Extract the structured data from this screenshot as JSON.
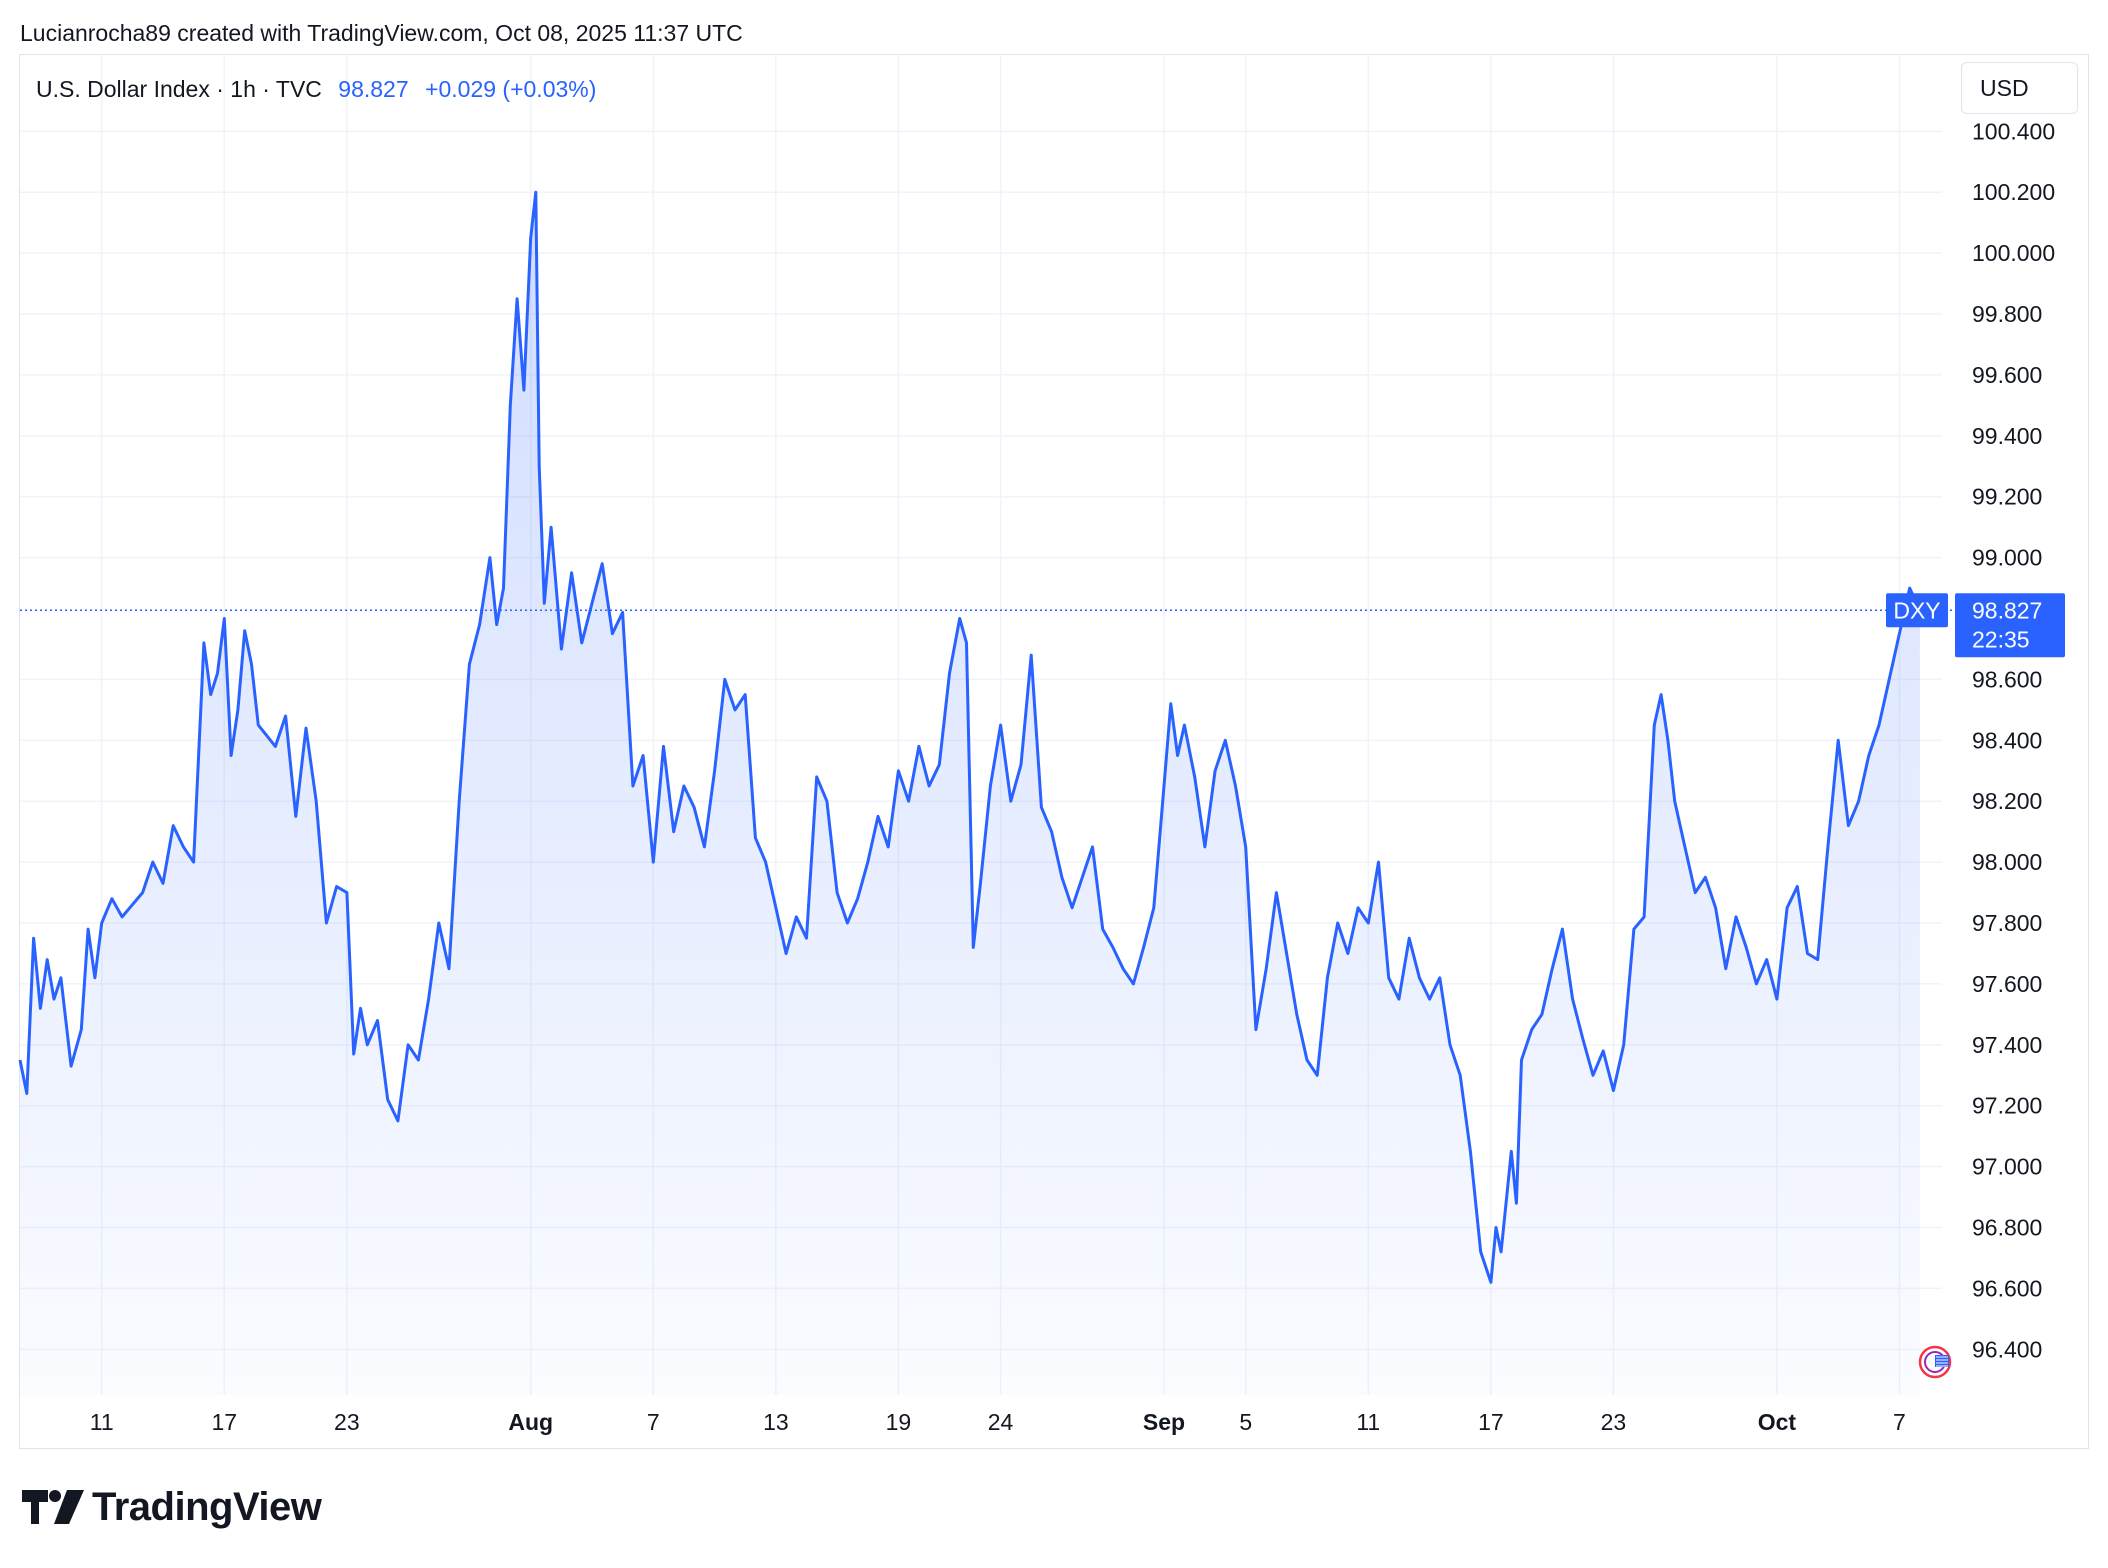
{
  "header": {
    "credit": "Lucianrocha89 created with TradingView.com, Oct 08, 2025 11:37 UTC"
  },
  "legend": {
    "symbol": "U.S. Dollar Index · 1h · TVC",
    "last": "98.827",
    "change": "+0.029 (+0.03%)"
  },
  "currency_button": "USD",
  "price_label": {
    "ticker": "DXY",
    "price": "98.827",
    "countdown": "22:35"
  },
  "footer": {
    "brand": "TradingView"
  },
  "icons": [
    "tradingview-logo-icon",
    "us-flag-icon"
  ],
  "colors": {
    "line": "#2962ff",
    "fill": "#2962ff",
    "grid": "#f0f3fa",
    "label_bg": "#2962ff"
  },
  "chart_data": {
    "type": "area",
    "symbol": "DXY",
    "interval": "1h",
    "y_axis_ticks": [
      "100.400",
      "100.200",
      "100.000",
      "99.800",
      "99.600",
      "99.400",
      "99.200",
      "99.000",
      "98.600",
      "98.400",
      "98.200",
      "98.000",
      "97.800",
      "97.600",
      "97.400",
      "97.200",
      "97.000",
      "96.800",
      "96.600",
      "96.400"
    ],
    "ylim": [
      96.25,
      100.47
    ],
    "x_axis_ticks": [
      {
        "label": "11",
        "date": "2025-07-11",
        "bold": false
      },
      {
        "label": "17",
        "date": "2025-07-17",
        "bold": false
      },
      {
        "label": "23",
        "date": "2025-07-23",
        "bold": false
      },
      {
        "label": "Aug",
        "date": "2025-08-01",
        "bold": true
      },
      {
        "label": "7",
        "date": "2025-08-07",
        "bold": false
      },
      {
        "label": "13",
        "date": "2025-08-13",
        "bold": false
      },
      {
        "label": "19",
        "date": "2025-08-19",
        "bold": false
      },
      {
        "label": "24",
        "date": "2025-08-24",
        "bold": false
      },
      {
        "label": "Sep",
        "date": "2025-09-01",
        "bold": true
      },
      {
        "label": "5",
        "date": "2025-09-05",
        "bold": false
      },
      {
        "label": "11",
        "date": "2025-09-11",
        "bold": false
      },
      {
        "label": "17",
        "date": "2025-09-17",
        "bold": false
      },
      {
        "label": "23",
        "date": "2025-09-23",
        "bold": false
      },
      {
        "label": "Oct",
        "date": "2025-10-01",
        "bold": true
      },
      {
        "label": "7",
        "date": "2025-10-07",
        "bold": false
      }
    ],
    "xlim": [
      "2025-07-07T00:00",
      "2025-10-09T02:00"
    ],
    "last_price": 98.827,
    "grid": true,
    "series": [
      {
        "points": [
          [
            "2025-07-07T00:00",
            97.35
          ],
          [
            "2025-07-07T08:00",
            97.24
          ],
          [
            "2025-07-07T16:00",
            97.75
          ],
          [
            "2025-07-08T00:00",
            97.52
          ],
          [
            "2025-07-08T08:00",
            97.68
          ],
          [
            "2025-07-08T16:00",
            97.55
          ],
          [
            "2025-07-09T00:00",
            97.62
          ],
          [
            "2025-07-09T12:00",
            97.33
          ],
          [
            "2025-07-10T00:00",
            97.45
          ],
          [
            "2025-07-10T08:00",
            97.78
          ],
          [
            "2025-07-10T16:00",
            97.62
          ],
          [
            "2025-07-11T00:00",
            97.8
          ],
          [
            "2025-07-11T12:00",
            97.88
          ],
          [
            "2025-07-12T00:00",
            97.82
          ],
          [
            "2025-07-13T00:00",
            97.9
          ],
          [
            "2025-07-13T12:00",
            98.0
          ],
          [
            "2025-07-14T00:00",
            97.93
          ],
          [
            "2025-07-14T12:00",
            98.12
          ],
          [
            "2025-07-15T00:00",
            98.05
          ],
          [
            "2025-07-15T12:00",
            98.0
          ],
          [
            "2025-07-16T00:00",
            98.72
          ],
          [
            "2025-07-16T08:00",
            98.55
          ],
          [
            "2025-07-16T16:00",
            98.62
          ],
          [
            "2025-07-17T00:00",
            98.8
          ],
          [
            "2025-07-17T08:00",
            98.35
          ],
          [
            "2025-07-17T16:00",
            98.5
          ],
          [
            "2025-07-18T00:00",
            98.76
          ],
          [
            "2025-07-18T08:00",
            98.65
          ],
          [
            "2025-07-18T16:00",
            98.45
          ],
          [
            "2025-07-19T12:00",
            98.38
          ],
          [
            "2025-07-20T00:00",
            98.48
          ],
          [
            "2025-07-20T12:00",
            98.15
          ],
          [
            "2025-07-21T00:00",
            98.44
          ],
          [
            "2025-07-21T12:00",
            98.2
          ],
          [
            "2025-07-22T00:00",
            97.8
          ],
          [
            "2025-07-22T12:00",
            97.92
          ],
          [
            "2025-07-23T00:00",
            97.9
          ],
          [
            "2025-07-23T08:00",
            97.37
          ],
          [
            "2025-07-23T16:00",
            97.52
          ],
          [
            "2025-07-24T00:00",
            97.4
          ],
          [
            "2025-07-24T12:00",
            97.48
          ],
          [
            "2025-07-25T00:00",
            97.22
          ],
          [
            "2025-07-25T12:00",
            97.15
          ],
          [
            "2025-07-26T00:00",
            97.4
          ],
          [
            "2025-07-26T12:00",
            97.35
          ],
          [
            "2025-07-27T00:00",
            97.55
          ],
          [
            "2025-07-27T12:00",
            97.8
          ],
          [
            "2025-07-28T00:00",
            97.65
          ],
          [
            "2025-07-28T12:00",
            98.2
          ],
          [
            "2025-07-29T00:00",
            98.65
          ],
          [
            "2025-07-29T12:00",
            98.78
          ],
          [
            "2025-07-30T00:00",
            99.0
          ],
          [
            "2025-07-30T08:00",
            98.78
          ],
          [
            "2025-07-30T16:00",
            98.9
          ],
          [
            "2025-07-31T00:00",
            99.5
          ],
          [
            "2025-07-31T08:00",
            99.85
          ],
          [
            "2025-07-31T16:00",
            99.55
          ],
          [
            "2025-08-01T00:00",
            100.05
          ],
          [
            "2025-08-01T06:00",
            100.2
          ],
          [
            "2025-08-01T10:00",
            99.3
          ],
          [
            "2025-08-01T16:00",
            98.85
          ],
          [
            "2025-08-02T00:00",
            99.1
          ],
          [
            "2025-08-02T12:00",
            98.7
          ],
          [
            "2025-08-03T00:00",
            98.95
          ],
          [
            "2025-08-03T12:00",
            98.72
          ],
          [
            "2025-08-04T00:00",
            98.85
          ],
          [
            "2025-08-04T12:00",
            98.98
          ],
          [
            "2025-08-05T00:00",
            98.75
          ],
          [
            "2025-08-05T12:00",
            98.82
          ],
          [
            "2025-08-06T00:00",
            98.25
          ],
          [
            "2025-08-06T12:00",
            98.35
          ],
          [
            "2025-08-07T00:00",
            98.0
          ],
          [
            "2025-08-07T12:00",
            98.38
          ],
          [
            "2025-08-08T00:00",
            98.1
          ],
          [
            "2025-08-08T12:00",
            98.25
          ],
          [
            "2025-08-09T00:00",
            98.18
          ],
          [
            "2025-08-09T12:00",
            98.05
          ],
          [
            "2025-08-10T00:00",
            98.3
          ],
          [
            "2025-08-10T12:00",
            98.6
          ],
          [
            "2025-08-11T00:00",
            98.5
          ],
          [
            "2025-08-11T12:00",
            98.55
          ],
          [
            "2025-08-12T00:00",
            98.08
          ],
          [
            "2025-08-12T12:00",
            98.0
          ],
          [
            "2025-08-13T00:00",
            97.85
          ],
          [
            "2025-08-13T12:00",
            97.7
          ],
          [
            "2025-08-14T00:00",
            97.82
          ],
          [
            "2025-08-14T12:00",
            97.75
          ],
          [
            "2025-08-15T00:00",
            98.28
          ],
          [
            "2025-08-15T12:00",
            98.2
          ],
          [
            "2025-08-16T00:00",
            97.9
          ],
          [
            "2025-08-16T12:00",
            97.8
          ],
          [
            "2025-08-17T00:00",
            97.88
          ],
          [
            "2025-08-17T12:00",
            98.0
          ],
          [
            "2025-08-18T00:00",
            98.15
          ],
          [
            "2025-08-18T12:00",
            98.05
          ],
          [
            "2025-08-19T00:00",
            98.3
          ],
          [
            "2025-08-19T12:00",
            98.2
          ],
          [
            "2025-08-20T00:00",
            98.38
          ],
          [
            "2025-08-20T12:00",
            98.25
          ],
          [
            "2025-08-21T00:00",
            98.32
          ],
          [
            "2025-08-21T12:00",
            98.62
          ],
          [
            "2025-08-22T00:00",
            98.8
          ],
          [
            "2025-08-22T08:00",
            98.72
          ],
          [
            "2025-08-22T16:00",
            97.72
          ],
          [
            "2025-08-23T00:00",
            97.92
          ],
          [
            "2025-08-23T12:00",
            98.25
          ],
          [
            "2025-08-24T00:00",
            98.45
          ],
          [
            "2025-08-24T12:00",
            98.2
          ],
          [
            "2025-08-25T00:00",
            98.32
          ],
          [
            "2025-08-25T12:00",
            98.68
          ],
          [
            "2025-08-26T00:00",
            98.18
          ],
          [
            "2025-08-26T12:00",
            98.1
          ],
          [
            "2025-08-27T00:00",
            97.95
          ],
          [
            "2025-08-27T12:00",
            97.85
          ],
          [
            "2025-08-28T00:00",
            97.95
          ],
          [
            "2025-08-28T12:00",
            98.05
          ],
          [
            "2025-08-29T00:00",
            97.78
          ],
          [
            "2025-08-29T12:00",
            97.72
          ],
          [
            "2025-08-30T00:00",
            97.65
          ],
          [
            "2025-08-30T12:00",
            97.6
          ],
          [
            "2025-08-31T00:00",
            97.72
          ],
          [
            "2025-08-31T12:00",
            97.85
          ],
          [
            "2025-09-01T00:00",
            98.25
          ],
          [
            "2025-09-01T08:00",
            98.52
          ],
          [
            "2025-09-01T16:00",
            98.35
          ],
          [
            "2025-09-02T00:00",
            98.45
          ],
          [
            "2025-09-02T12:00",
            98.28
          ],
          [
            "2025-09-03T00:00",
            98.05
          ],
          [
            "2025-09-03T12:00",
            98.3
          ],
          [
            "2025-09-04T00:00",
            98.4
          ],
          [
            "2025-09-04T12:00",
            98.25
          ],
          [
            "2025-09-05T00:00",
            98.05
          ],
          [
            "2025-09-05T12:00",
            97.45
          ],
          [
            "2025-09-06T00:00",
            97.65
          ],
          [
            "2025-09-06T12:00",
            97.9
          ],
          [
            "2025-09-07T00:00",
            97.7
          ],
          [
            "2025-09-07T12:00",
            97.5
          ],
          [
            "2025-09-08T00:00",
            97.35
          ],
          [
            "2025-09-08T12:00",
            97.3
          ],
          [
            "2025-09-09T00:00",
            97.62
          ],
          [
            "2025-09-09T12:00",
            97.8
          ],
          [
            "2025-09-10T00:00",
            97.7
          ],
          [
            "2025-09-10T12:00",
            97.85
          ],
          [
            "2025-09-11T00:00",
            97.8
          ],
          [
            "2025-09-11T12:00",
            98.0
          ],
          [
            "2025-09-12T00:00",
            97.62
          ],
          [
            "2025-09-12T12:00",
            97.55
          ],
          [
            "2025-09-13T00:00",
            97.75
          ],
          [
            "2025-09-13T12:00",
            97.62
          ],
          [
            "2025-09-14T00:00",
            97.55
          ],
          [
            "2025-09-14T12:00",
            97.62
          ],
          [
            "2025-09-15T00:00",
            97.4
          ],
          [
            "2025-09-15T12:00",
            97.3
          ],
          [
            "2025-09-16T00:00",
            97.05
          ],
          [
            "2025-09-16T12:00",
            96.72
          ],
          [
            "2025-09-17T00:00",
            96.62
          ],
          [
            "2025-09-17T06:00",
            96.8
          ],
          [
            "2025-09-17T12:00",
            96.72
          ],
          [
            "2025-09-18T00:00",
            97.05
          ],
          [
            "2025-09-18T06:00",
            96.88
          ],
          [
            "2025-09-18T12:00",
            97.35
          ],
          [
            "2025-09-19T00:00",
            97.45
          ],
          [
            "2025-09-19T12:00",
            97.5
          ],
          [
            "2025-09-20T00:00",
            97.65
          ],
          [
            "2025-09-20T12:00",
            97.78
          ],
          [
            "2025-09-21T00:00",
            97.55
          ],
          [
            "2025-09-21T12:00",
            97.42
          ],
          [
            "2025-09-22T00:00",
            97.3
          ],
          [
            "2025-09-22T12:00",
            97.38
          ],
          [
            "2025-09-23T00:00",
            97.25
          ],
          [
            "2025-09-23T12:00",
            97.4
          ],
          [
            "2025-09-24T00:00",
            97.78
          ],
          [
            "2025-09-24T12:00",
            97.82
          ],
          [
            "2025-09-25T00:00",
            98.45
          ],
          [
            "2025-09-25T08:00",
            98.55
          ],
          [
            "2025-09-25T16:00",
            98.4
          ],
          [
            "2025-09-26T00:00",
            98.2
          ],
          [
            "2025-09-26T12:00",
            98.05
          ],
          [
            "2025-09-27T00:00",
            97.9
          ],
          [
            "2025-09-27T12:00",
            97.95
          ],
          [
            "2025-09-28T00:00",
            97.85
          ],
          [
            "2025-09-28T12:00",
            97.65
          ],
          [
            "2025-09-29T00:00",
            97.82
          ],
          [
            "2025-09-29T12:00",
            97.72
          ],
          [
            "2025-09-30T00:00",
            97.6
          ],
          [
            "2025-09-30T12:00",
            97.68
          ],
          [
            "2025-10-01T00:00",
            97.55
          ],
          [
            "2025-10-01T12:00",
            97.85
          ],
          [
            "2025-10-02T00:00",
            97.92
          ],
          [
            "2025-10-02T12:00",
            97.7
          ],
          [
            "2025-10-03T00:00",
            97.68
          ],
          [
            "2025-10-03T12:00",
            98.05
          ],
          [
            "2025-10-04T00:00",
            98.4
          ],
          [
            "2025-10-04T12:00",
            98.12
          ],
          [
            "2025-10-05T00:00",
            98.2
          ],
          [
            "2025-10-05T12:00",
            98.35
          ],
          [
            "2025-10-06T00:00",
            98.45
          ],
          [
            "2025-10-06T12:00",
            98.6
          ],
          [
            "2025-10-07T00:00",
            98.75
          ],
          [
            "2025-10-07T12:00",
            98.9
          ],
          [
            "2025-10-08T00:00",
            98.827
          ]
        ]
      }
    ]
  }
}
